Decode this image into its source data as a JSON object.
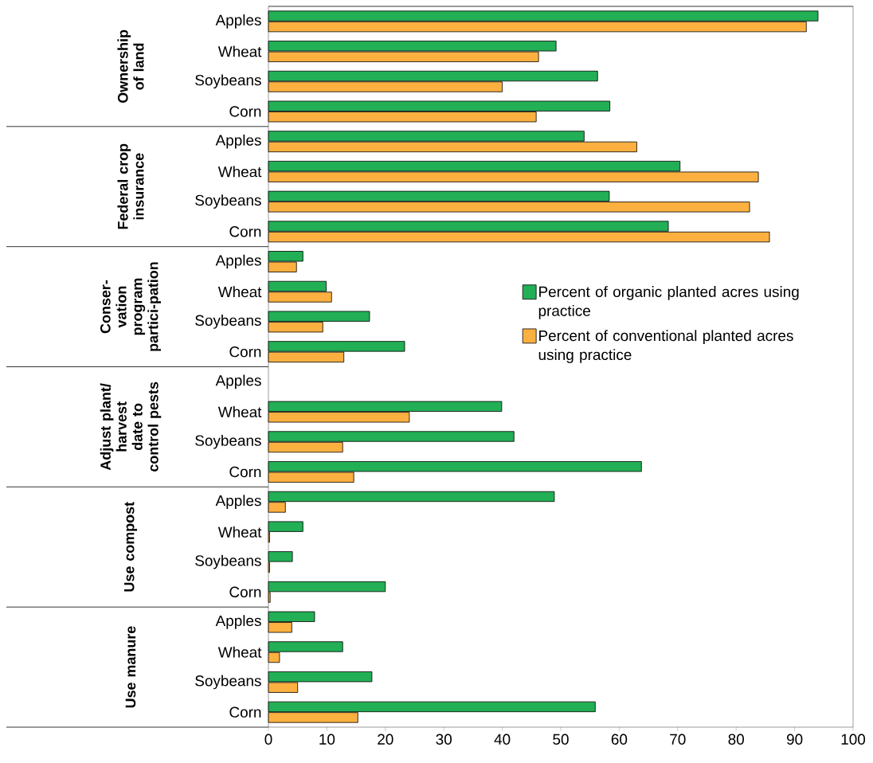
{
  "chart_data": [
    {
      "type": "bar",
      "orientation": "horizontal",
      "ylabel": "Ownership of land",
      "categories": [
        "Apples",
        "Wheat",
        "Soybeans",
        "Corn"
      ],
      "xlim": [
        0,
        100
      ],
      "xticks": [
        0,
        10,
        20,
        30,
        40,
        50,
        60,
        70,
        80,
        90,
        100
      ],
      "tick_labels": "y",
      "series": [
        {
          "color": "#22af55",
          "values": [
            94,
            49.2,
            56.3,
            58.4
          ]
        },
        {
          "color": "#fbb040",
          "values": [
            92,
            46.2,
            40,
            45.8
          ]
        }
      ]
    },
    {
      "type": "bar",
      "orientation": "horizontal",
      "ylabel": "Federal crop insurance",
      "categories": [
        "Apples",
        "Wheat",
        "Soybeans",
        "Corn"
      ],
      "xlim": [
        0,
        100
      ],
      "xticks": [
        0,
        10,
        20,
        30,
        40,
        50,
        60,
        70,
        80,
        90,
        100
      ],
      "tick_labels": "y",
      "series": [
        {
          "color": "#22af55",
          "values": [
            54,
            70.4,
            58.3,
            68.4
          ]
        },
        {
          "color": "#fbb040",
          "values": [
            63,
            83.8,
            82.3,
            85.7
          ]
        }
      ]
    },
    {
      "type": "bar",
      "orientation": "horizontal",
      "ylabel": "Conser-vation program partici-pation",
      "categories": [
        "Apples",
        "Wheat",
        "Soybeans",
        "Corn"
      ],
      "xlim": [
        0,
        100
      ],
      "xticks": [
        0,
        10,
        20,
        30,
        40,
        50,
        60,
        70,
        80,
        90,
        100
      ],
      "tick_labels": "y",
      "legend": "right",
      "series": [
        {
          "name": "Percent of organic planted acres using practice",
          "color": "#22af55",
          "values": [
            5.9,
            9.9,
            17.3,
            23.3
          ]
        },
        {
          "name": "Percent of conventional planted acres using practice",
          "color": "#fbb040",
          "values": [
            4.8,
            10.8,
            9.3,
            12.9
          ]
        }
      ]
    },
    {
      "type": "bar",
      "orientation": "horizontal",
      "ylabel": "Adjust plant/harvest date to control pests",
      "categories": [
        "Apples",
        "Wheat",
        "Soybeans",
        "Corn"
      ],
      "xlim": [
        0,
        100
      ],
      "xticks": [
        0,
        10,
        20,
        30,
        40,
        50,
        60,
        70,
        80,
        90,
        100
      ],
      "tick_labels": "y",
      "series": [
        {
          "color": "#22af55",
          "values": [
            null,
            39.9,
            42,
            63.8
          ]
        },
        {
          "color": "#fbb040",
          "values": [
            null,
            24.1,
            12.7,
            14.6
          ]
        }
      ]
    },
    {
      "type": "bar",
      "orientation": "horizontal",
      "ylabel": "Use compost",
      "categories": [
        "Apples",
        "Wheat",
        "Soybeans",
        "Corn"
      ],
      "xlim": [
        0,
        100
      ],
      "xticks": [
        0,
        10,
        20,
        30,
        40,
        50,
        60,
        70,
        80,
        90,
        100
      ],
      "tick_labels": "y",
      "series": [
        {
          "color": "#22af55",
          "values": [
            48.9,
            5.9,
            4.1,
            20
          ]
        },
        {
          "color": "#fbb040",
          "values": [
            2.9,
            0.2,
            0.2,
            0.3
          ]
        }
      ]
    },
    {
      "type": "bar",
      "orientation": "horizontal",
      "ylabel": "Use manure",
      "categories": [
        "Apples",
        "Wheat",
        "Soybeans",
        "Corn"
      ],
      "xlim": [
        0,
        100
      ],
      "xticks": [
        0,
        10,
        20,
        30,
        40,
        50,
        60,
        70,
        80,
        90,
        100
      ],
      "series": [
        {
          "color": "#22af55",
          "values": [
            7.9,
            12.7,
            17.7,
            55.9
          ]
        },
        {
          "color": "#fbb040",
          "values": [
            4,
            1.9,
            5,
            15.3
          ]
        }
      ]
    }
  ]
}
